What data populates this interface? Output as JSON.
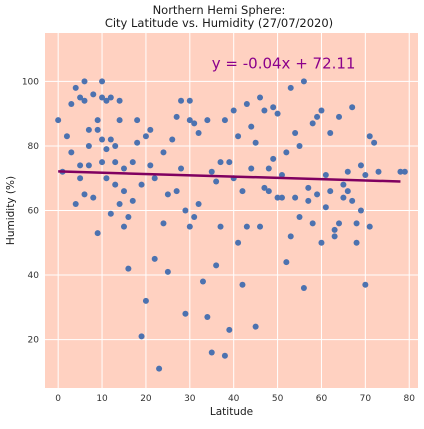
{
  "colors": {
    "plot_bg": "#FFD1C1",
    "grid": "#FFFFFF",
    "points": "#4C72B0",
    "regression": "#800060",
    "equation": "#8B008B"
  },
  "chart_data": {
    "type": "scatter",
    "title": "Northern Hemi Sphere:",
    "subtitle": "City Latitude vs. Humidity (27/07/2020)",
    "xlabel": "Latitude",
    "ylabel": "Humidity (%)",
    "xlim": [
      -3,
      82
    ],
    "ylim": [
      5,
      115
    ],
    "xticks": [
      0,
      10,
      20,
      30,
      40,
      50,
      60,
      70,
      80
    ],
    "yticks": [
      20,
      40,
      60,
      80,
      100
    ],
    "grid": true,
    "annotation": "y = -0.04x + 72.11",
    "regression": {
      "slope": -0.04,
      "intercept": 72.11,
      "x_range": [
        0,
        78
      ]
    },
    "x": [
      0,
      1,
      2,
      3,
      3,
      4,
      4,
      5,
      5,
      5,
      6,
      6,
      6,
      7,
      7,
      7,
      8,
      8,
      9,
      9,
      9,
      10,
      10,
      10,
      10,
      11,
      11,
      11,
      12,
      12,
      12,
      13,
      13,
      13,
      14,
      14,
      14,
      15,
      15,
      15,
      16,
      16,
      17,
      17,
      18,
      18,
      19,
      19,
      20,
      20,
      21,
      21,
      22,
      22,
      23,
      24,
      24,
      25,
      25,
      26,
      27,
      27,
      28,
      28,
      29,
      29,
      30,
      30,
      30,
      31,
      31,
      32,
      32,
      33,
      34,
      34,
      35,
      35,
      36,
      36,
      37,
      37,
      38,
      38,
      39,
      39,
      40,
      40,
      41,
      41,
      42,
      42,
      43,
      43,
      44,
      44,
      45,
      45,
      46,
      46,
      47,
      47,
      48,
      48,
      49,
      49,
      50,
      50,
      51,
      51,
      52,
      52,
      53,
      53,
      54,
      54,
      55,
      55,
      56,
      56,
      57,
      57,
      58,
      58,
      59,
      59,
      60,
      60,
      61,
      61,
      62,
      62,
      63,
      63,
      64,
      64,
      65,
      65,
      66,
      66,
      67,
      67,
      68,
      68,
      69,
      69,
      70,
      70,
      71,
      71,
      72,
      73,
      78,
      79
    ],
    "y": [
      88,
      72,
      83,
      93,
      78,
      62,
      98,
      95,
      74,
      70,
      100,
      65,
      94,
      80,
      85,
      74,
      96,
      64,
      85,
      88,
      53,
      100,
      95,
      75,
      82,
      94,
      79,
      70,
      82,
      95,
      59,
      68,
      75,
      80,
      88,
      62,
      94,
      66,
      55,
      73,
      58,
      42,
      75,
      63,
      88,
      81,
      21,
      68,
      83,
      32,
      85,
      74,
      45,
      70,
      11,
      78,
      56,
      65,
      41,
      82,
      66,
      89,
      73,
      94,
      28,
      60,
      94,
      88,
      55,
      87,
      58,
      62,
      84,
      38,
      88,
      27,
      72,
      16,
      69,
      43,
      55,
      75,
      88,
      15,
      75,
      23,
      91,
      70,
      50,
      83,
      66,
      37,
      93,
      55,
      73,
      86,
      24,
      81,
      95,
      55,
      91,
      67,
      66,
      73,
      92,
      76,
      90,
      64,
      64,
      71,
      78,
      44,
      98,
      52,
      84,
      64,
      58,
      80,
      36,
      100,
      63,
      67,
      87,
      56,
      65,
      89,
      91,
      50,
      71,
      61,
      84,
      66,
      52,
      54,
      89,
      56,
      68,
      64,
      72,
      66,
      63,
      92,
      56,
      50,
      60,
      74,
      71,
      37,
      55,
      83,
      81,
      72,
      72,
      72
    ]
  }
}
